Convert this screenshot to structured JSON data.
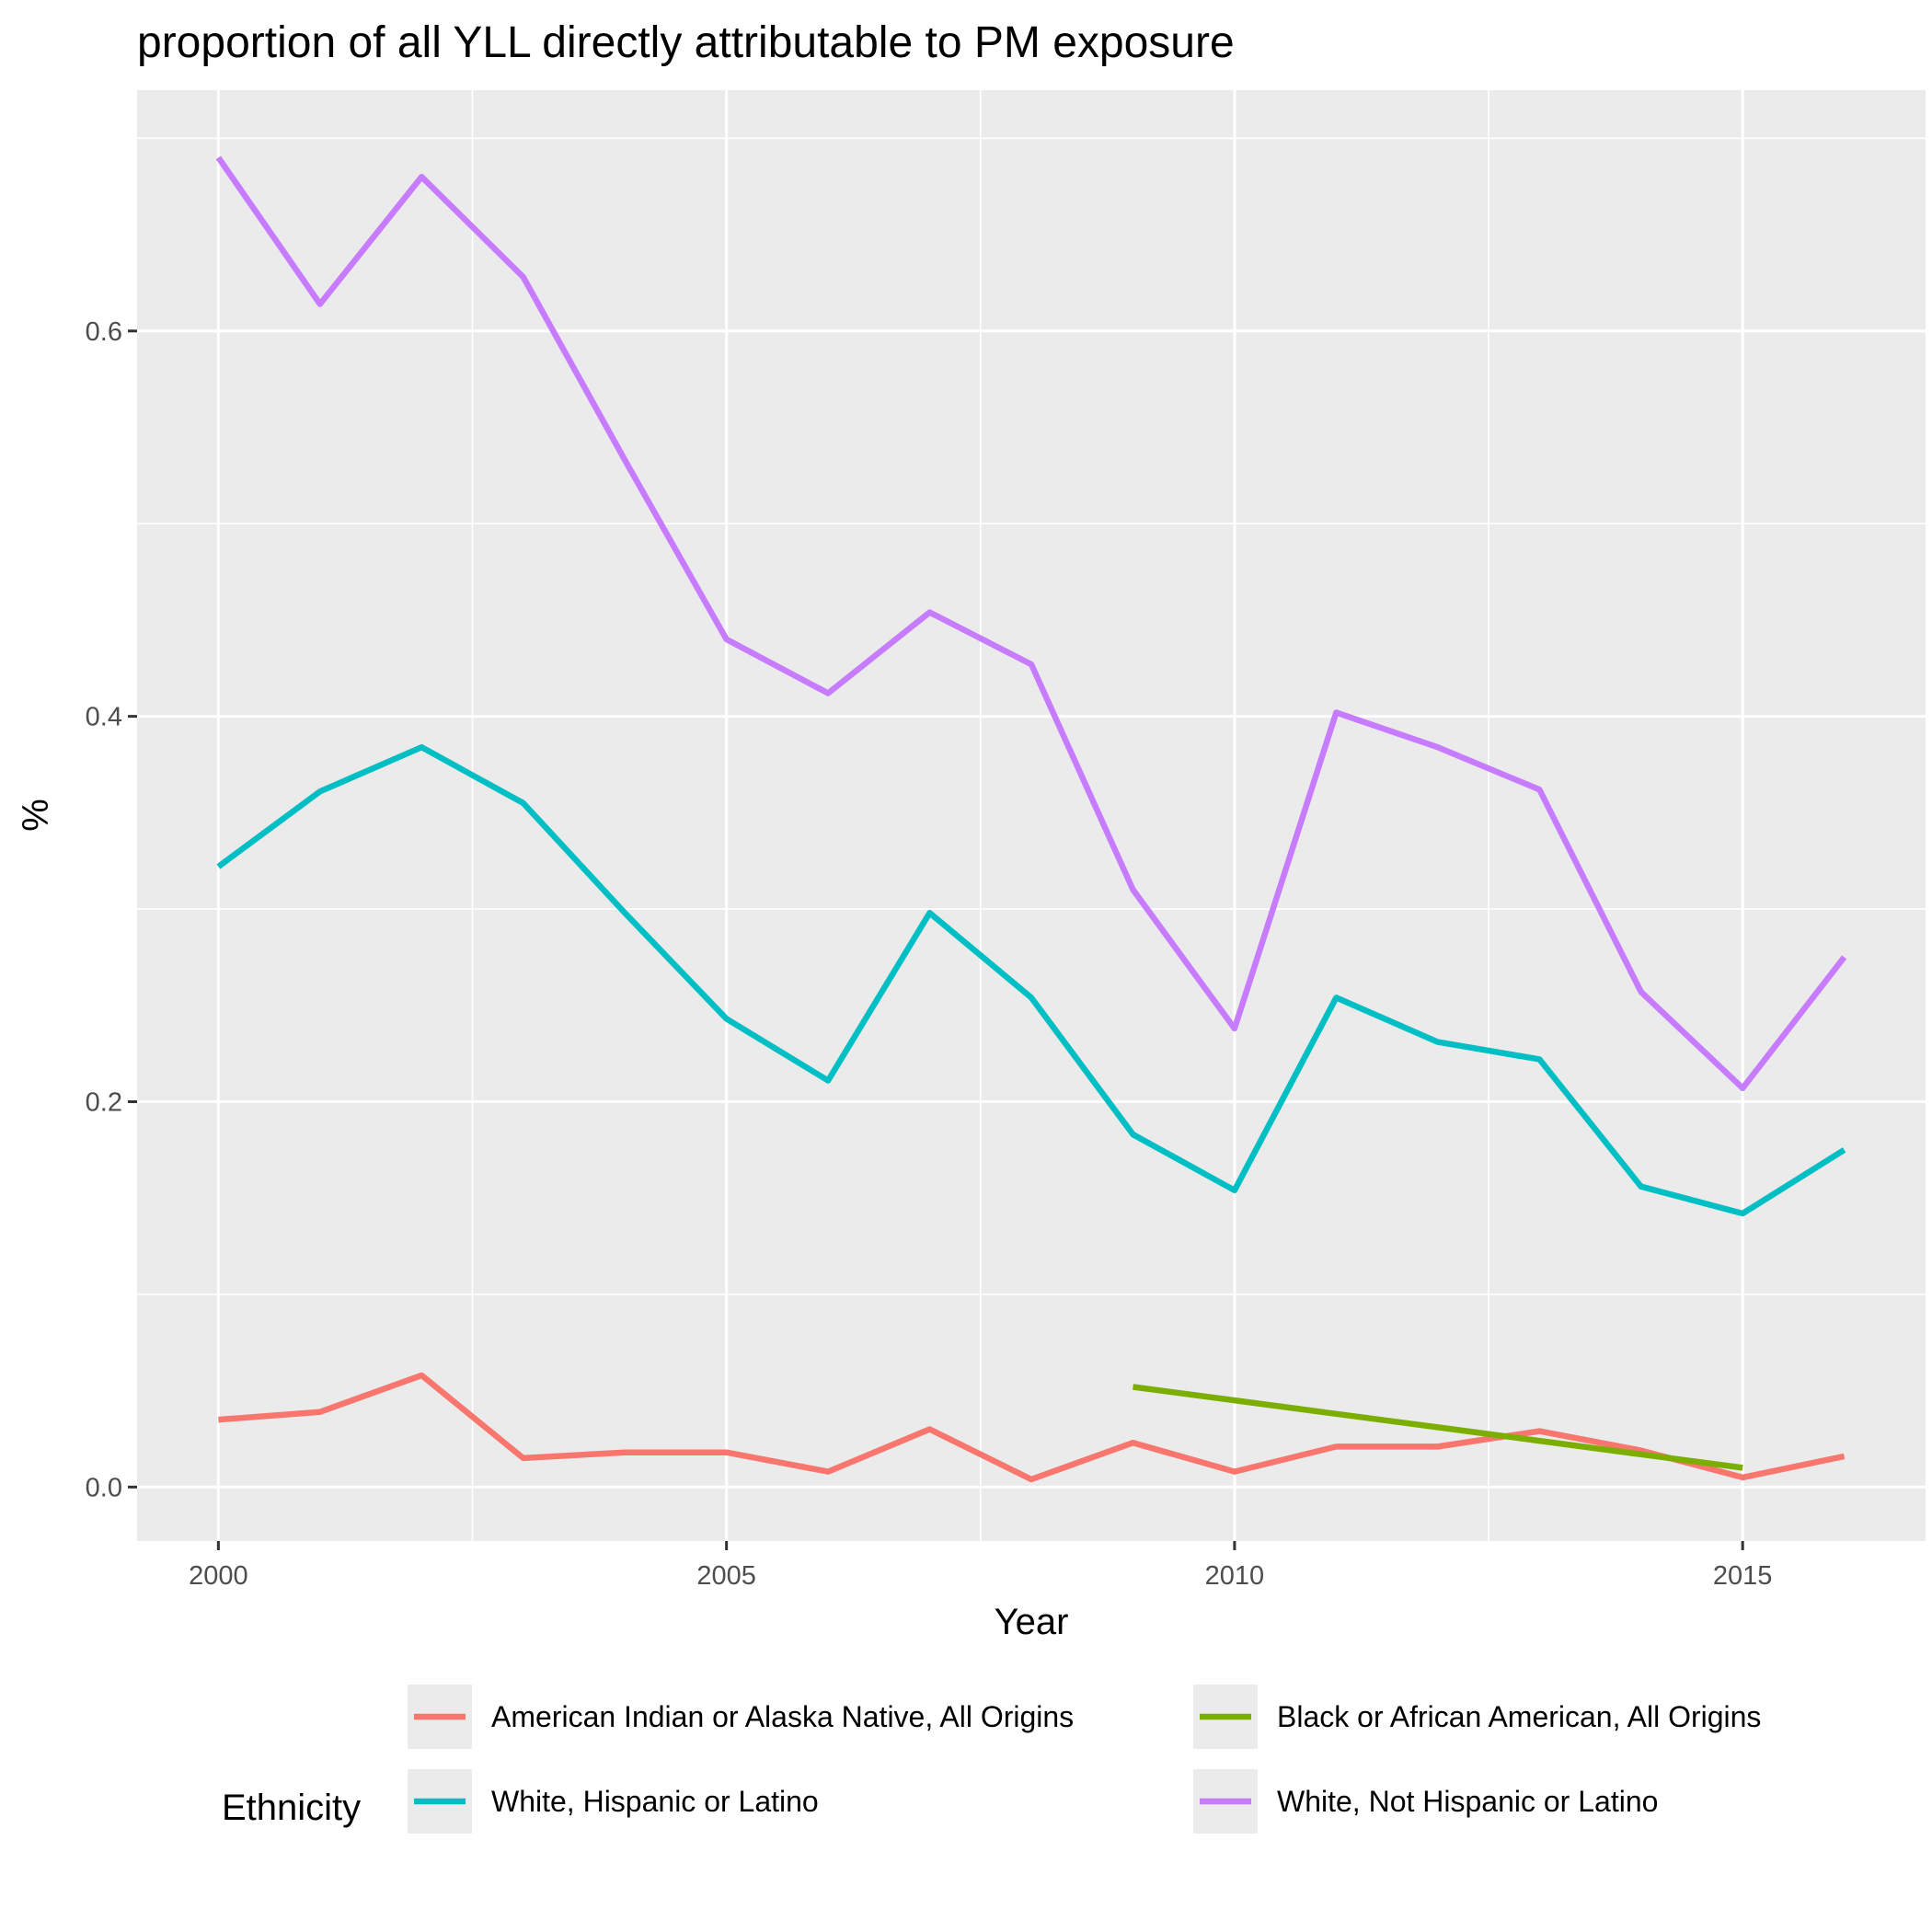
{
  "chart_data": {
    "type": "line",
    "title": "proportion of all YLL directly attributable to PM exposure",
    "xlabel": "Year",
    "ylabel": "%",
    "xlim": [
      1999.2,
      2016.8
    ],
    "ylim": [
      -0.028,
      0.725
    ],
    "x_ticks": [
      2000,
      2005,
      2010,
      2015
    ],
    "x_tick_labels": [
      "2000",
      "2005",
      "2010",
      "2015"
    ],
    "x_minor_ticks": [
      2002.5,
      2007.5,
      2012.5
    ],
    "y_ticks": [
      0.0,
      0.2,
      0.4,
      0.6
    ],
    "y_tick_labels": [
      "0.0",
      "0.2",
      "0.4",
      "0.6"
    ],
    "y_minor_ticks": [
      0.1,
      0.3,
      0.5,
      0.7
    ],
    "grid": true,
    "legend": {
      "title": "Ethnicity",
      "position": "bottom"
    },
    "series": [
      {
        "name": "American Indian or Alaska Native, All Origins",
        "color": "#F8766D",
        "x": [
          2000,
          2001,
          2002,
          2003,
          2004,
          2005,
          2006,
          2007,
          2008,
          2009,
          2010,
          2011,
          2012,
          2013,
          2014,
          2015,
          2016
        ],
        "values": [
          0.035,
          0.039,
          0.058,
          0.015,
          0.018,
          0.018,
          0.008,
          0.03,
          0.004,
          0.023,
          0.008,
          0.021,
          0.021,
          0.029,
          0.019,
          0.005,
          0.016
        ]
      },
      {
        "name": "Black or African American, All Origins",
        "color": "#7CAE00",
        "x": [
          2009,
          2010,
          2011,
          2012,
          2013,
          2014,
          2015
        ],
        "values": [
          0.052,
          0.045,
          0.038,
          0.031,
          0.024,
          0.017,
          0.01
        ]
      },
      {
        "name": "White, Hispanic or Latino",
        "color": "#00BFC4",
        "x": [
          2000,
          2001,
          2002,
          2003,
          2004,
          2005,
          2006,
          2007,
          2008,
          2009,
          2010,
          2011,
          2012,
          2013,
          2014,
          2015,
          2016
        ],
        "values": [
          0.322,
          0.361,
          0.384,
          0.355,
          0.298,
          0.243,
          0.211,
          0.298,
          0.254,
          0.183,
          0.154,
          0.254,
          0.231,
          0.222,
          0.156,
          0.142,
          0.175
        ]
      },
      {
        "name": "White, Not Hispanic or Latino",
        "color": "#C77CFF",
        "x": [
          2000,
          2001,
          2002,
          2003,
          2004,
          2005,
          2006,
          2007,
          2008,
          2009,
          2010,
          2011,
          2012,
          2013,
          2014,
          2015,
          2016
        ],
        "values": [
          0.69,
          0.614,
          0.68,
          0.628,
          0.533,
          0.44,
          0.412,
          0.454,
          0.427,
          0.31,
          0.238,
          0.402,
          0.384,
          0.362,
          0.257,
          0.207,
          0.275
        ]
      }
    ]
  }
}
